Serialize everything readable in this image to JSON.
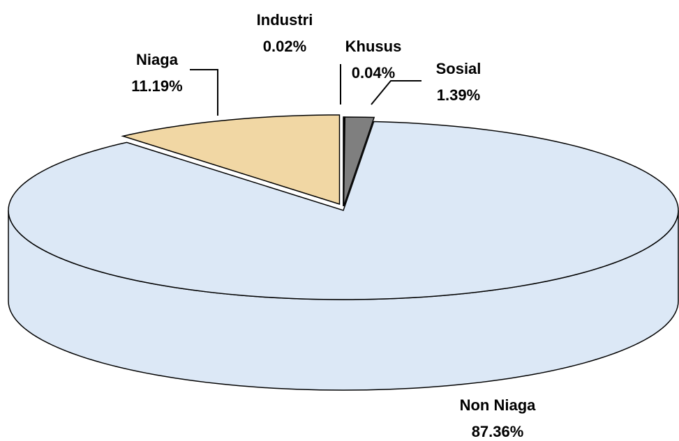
{
  "chart_data": {
    "type": "pie",
    "categories": [
      "Industri",
      "Khusus",
      "Sosial",
      "Non Niaga",
      "Niaga"
    ],
    "values": [
      0.02,
      0.04,
      1.39,
      87.36,
      11.19
    ],
    "value_labels": [
      "0.02%",
      "0.04%",
      "1.39%",
      "87.36%",
      "11.19%"
    ],
    "colors": [
      "#ffffff",
      "#e6e6e6",
      "#7f7f7f",
      "#dce8f6",
      "#f1d7a4"
    ],
    "start_angle": -90
  }
}
